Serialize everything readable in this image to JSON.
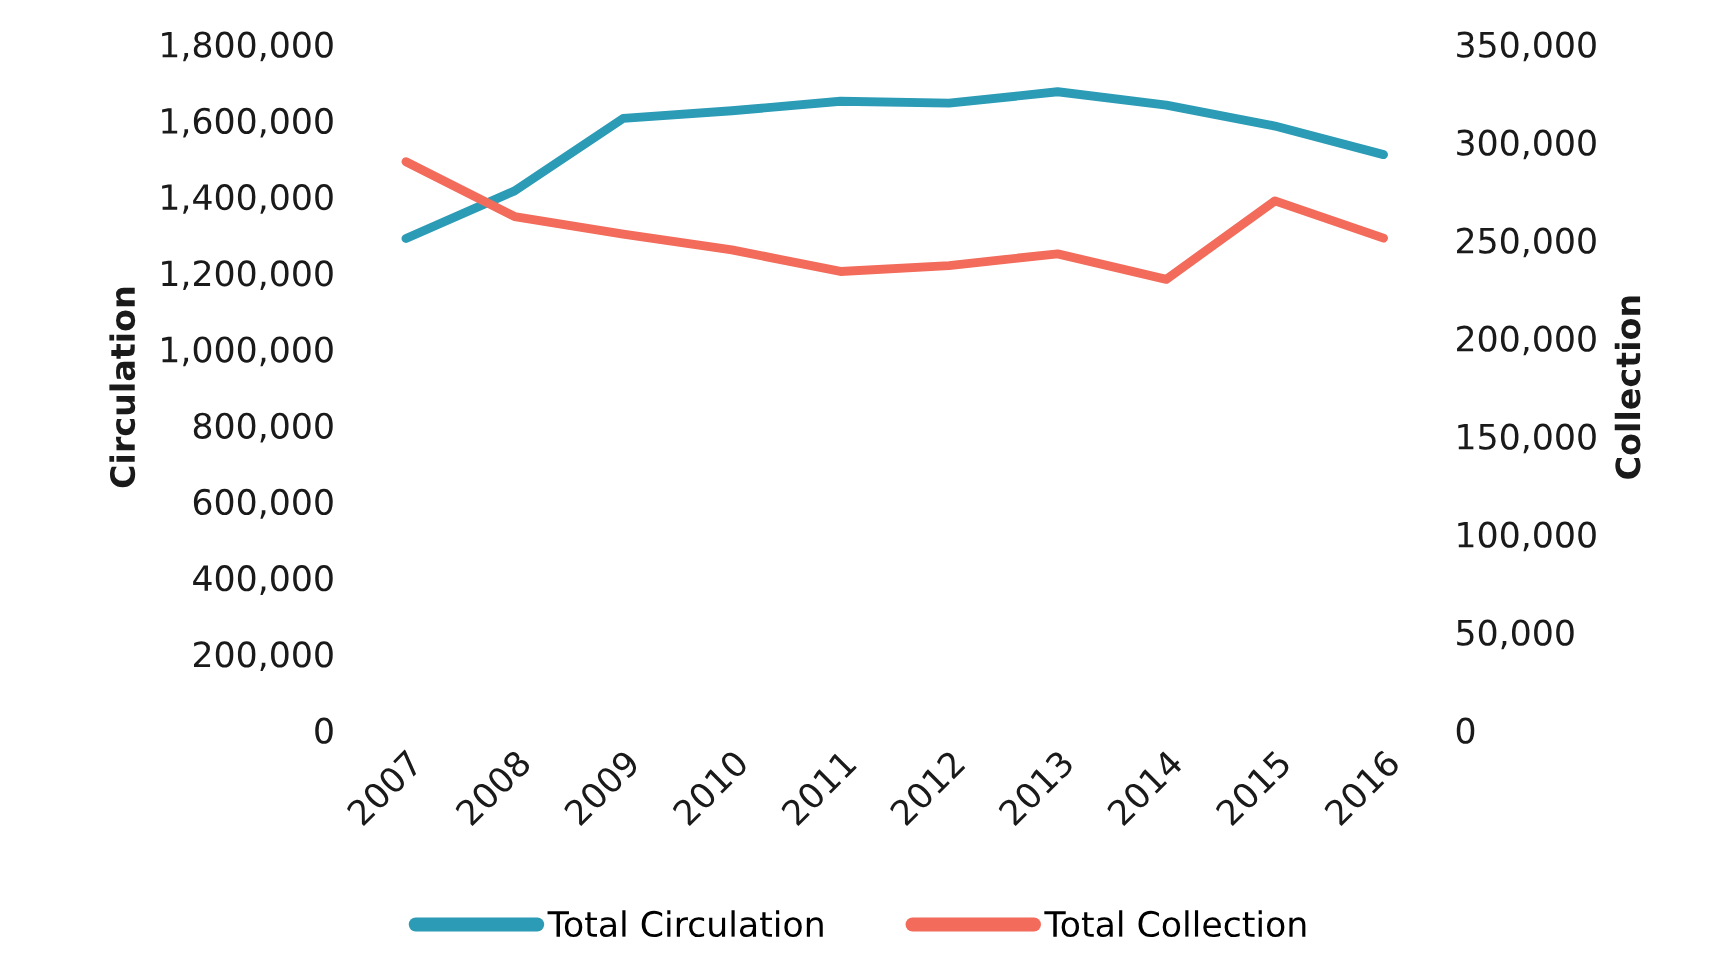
{
  "chart_data": {
    "type": "line",
    "categories": [
      "2007",
      "2008",
      "2009",
      "2010",
      "2011",
      "2012",
      "2013",
      "2014",
      "2015",
      "2016"
    ],
    "series": [
      {
        "name": "Total Circulation",
        "color": "#2b9bb6",
        "values": [
          1290000,
          1415000,
          1605000,
          1625000,
          1650000,
          1645000,
          1675000,
          1640000,
          1585000,
          1510000
        ]
      },
      {
        "name": "Total Collection",
        "color": "#f26b5b",
        "axis": "y2",
        "values": [
          290000,
          262000,
          253000,
          245000,
          234000,
          237000,
          243000,
          230000,
          270000,
          251000
        ]
      }
    ],
    "ylabel": "Circulation",
    "y2label": "Collection",
    "ylim": [
      0,
      1800000
    ],
    "yticks": [
      0,
      {
        "value": 200000,
        "label": "200,000"
      },
      {
        "value": 400000,
        "label": "400,000"
      },
      {
        "value": 600000,
        "label": "600,000"
      },
      {
        "value": 800000,
        "label": "800,000"
      },
      {
        "value": 1000000,
        "label": "1,000,000"
      },
      {
        "value": 1200000,
        "label": "1,200,000"
      },
      {
        "value": 1400000,
        "label": "1,400,000"
      },
      {
        "value": 1600000,
        "label": "1,600,000"
      },
      {
        "value": 1800000,
        "label": "1,800,000"
      }
    ],
    "y2lim": [
      0,
      350000
    ],
    "y2ticks": [
      0,
      {
        "value": 50000,
        "label": "50,000"
      },
      {
        "value": 100000,
        "label": "100,000"
      },
      {
        "value": 150000,
        "label": "150,000"
      },
      {
        "value": 200000,
        "label": "200,000"
      },
      {
        "value": 250000,
        "label": "250,000"
      },
      {
        "value": 300000,
        "label": "300,000"
      },
      {
        "value": 350000,
        "label": "350,000"
      }
    ],
    "legend": "bottom",
    "grid": false
  }
}
